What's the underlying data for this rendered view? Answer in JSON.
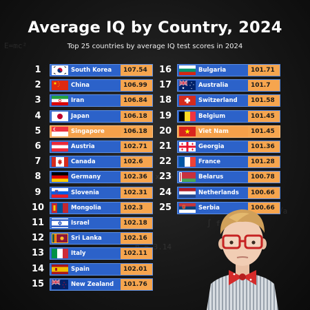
{
  "title": "Average IQ by Country, 2024",
  "subtitle": "Top 25 countries by average IQ test scores in 2024",
  "colors": {
    "bar": "#2c62c9",
    "highlight": "#f5a04a",
    "score_box": "#f6a54e"
  },
  "chart_data": {
    "type": "table",
    "title": "Average IQ by Country, 2024",
    "subtitle": "Top 25 countries by average IQ test scores in 2024",
    "rows": [
      {
        "rank": "1",
        "country": "South Korea",
        "value": "107.54",
        "flag": "kr",
        "highlight": false
      },
      {
        "rank": "2",
        "country": "China",
        "value": "106.99",
        "flag": "cn",
        "highlight": false
      },
      {
        "rank": "3",
        "country": "Iran",
        "value": "106.84",
        "flag": "ir",
        "highlight": false
      },
      {
        "rank": "4",
        "country": "Japan",
        "value": "106.18",
        "flag": "jp",
        "highlight": false
      },
      {
        "rank": "5",
        "country": "Singapore",
        "value": "106.18",
        "flag": "sg",
        "highlight": true
      },
      {
        "rank": "6",
        "country": "Austria",
        "value": "102.71",
        "flag": "at",
        "highlight": false
      },
      {
        "rank": "7",
        "country": "Canada",
        "value": "102.6",
        "flag": "ca",
        "highlight": false
      },
      {
        "rank": "8",
        "country": "Germany",
        "value": "102.36",
        "flag": "de",
        "highlight": false
      },
      {
        "rank": "9",
        "country": "Slovenia",
        "value": "102.31",
        "flag": "si",
        "highlight": false
      },
      {
        "rank": "10",
        "country": "Mongolia",
        "value": "102.3",
        "flag": "mn",
        "highlight": false
      },
      {
        "rank": "11",
        "country": "Israel",
        "value": "102.18",
        "flag": "il",
        "highlight": false
      },
      {
        "rank": "12",
        "country": "Sri Lanka",
        "value": "102.16",
        "flag": "lk",
        "highlight": false
      },
      {
        "rank": "13",
        "country": "Italy",
        "value": "102.11",
        "flag": "it",
        "highlight": false
      },
      {
        "rank": "14",
        "country": "Spain",
        "value": "102.01",
        "flag": "es",
        "highlight": false
      },
      {
        "rank": "15",
        "country": "New Zealand",
        "value": "101.76",
        "flag": "nz",
        "highlight": false
      },
      {
        "rank": "16",
        "country": "Bulgaria",
        "value": "101.71",
        "flag": "bg",
        "highlight": false
      },
      {
        "rank": "17",
        "country": "Australia",
        "value": "101.7",
        "flag": "au",
        "highlight": false
      },
      {
        "rank": "18",
        "country": "Switzerland",
        "value": "101.58",
        "flag": "ch",
        "highlight": false
      },
      {
        "rank": "19",
        "country": "Belgium",
        "value": "101.45",
        "flag": "be",
        "highlight": false
      },
      {
        "rank": "20",
        "country": "Viet Nam",
        "value": "101.45",
        "flag": "vn",
        "highlight": true
      },
      {
        "rank": "21",
        "country": "Georgia",
        "value": "101.36",
        "flag": "ge",
        "highlight": false
      },
      {
        "rank": "22",
        "country": "France",
        "value": "101.28",
        "flag": "fr",
        "highlight": false
      },
      {
        "rank": "23",
        "country": "Belarus",
        "value": "100.78",
        "flag": "by",
        "highlight": false
      },
      {
        "rank": "24",
        "country": "Netherlands",
        "value": "100.66",
        "flag": "nl",
        "highlight": false
      },
      {
        "rank": "25",
        "country": "Serbia",
        "value": "100.66",
        "flag": "rs",
        "highlight": false
      }
    ]
  }
}
